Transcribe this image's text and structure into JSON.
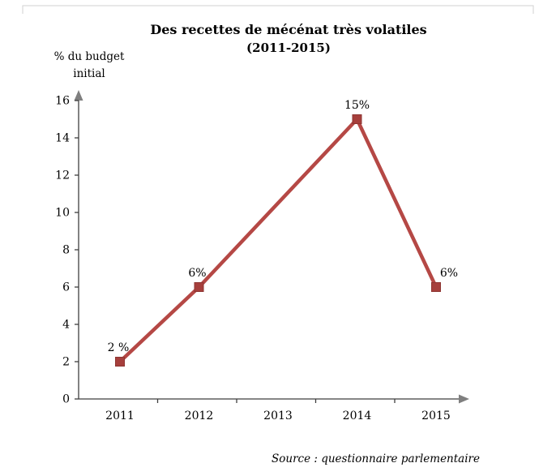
{
  "chart": {
    "title": "Des recettes de mécénat très volatiles",
    "subtitle": "(2011-2015)",
    "y_axis_title": [
      "% du budget",
      "initial"
    ],
    "source": "Source : questionnaire parlementaire"
  },
  "chart_data": {
    "type": "line",
    "title": "Des recettes de mécénat très volatiles (2011-2015)",
    "ylabel": "% du budget initial",
    "categories": [
      "2011",
      "2012",
      "2013",
      "2014",
      "2015"
    ],
    "series": [
      {
        "points": [
          {
            "category": "2011",
            "value": 2,
            "label": "2 %",
            "label_dx": -2
          },
          {
            "category": "2012",
            "value": 6,
            "label": "6%",
            "label_dx": -2
          },
          {
            "category": "2014",
            "value": 15,
            "label": "15%",
            "label_dx": 0
          },
          {
            "category": "2015",
            "value": 6,
            "label": "6%",
            "label_dx": 16
          }
        ]
      }
    ],
    "ylim": [
      0,
      16
    ],
    "ytick_step": 2,
    "grid": false,
    "legend": false,
    "line_color": "#b54845",
    "marker": "square",
    "marker_color": "#a63f3c",
    "marker_border": "#8e3532",
    "axis_color": "#3f3f3f",
    "arrow_color": "#7f7f7f"
  }
}
